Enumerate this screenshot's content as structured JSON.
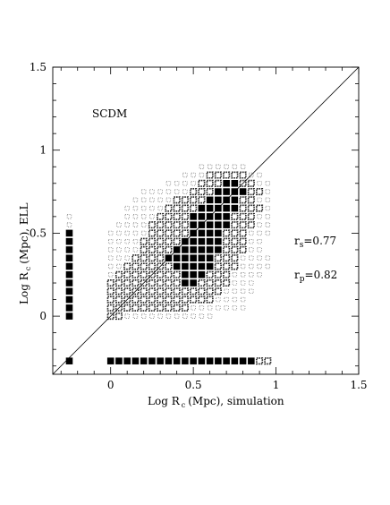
{
  "chart_data": {
    "type": "heatmap",
    "xlabel": "Log R",
    "xlabel_sub": "c",
    "xlabel_rest": "(Mpc), simulation",
    "ylabel": "Log R",
    "ylabel_sub": "c",
    "ylabel_rest": "(Mpc), ELL",
    "xlim": [
      -0.35,
      1.5
    ],
    "ylim": [
      -0.35,
      1.5
    ],
    "xticks": [
      {
        "v": 0,
        "label": "0"
      },
      {
        "v": 0.5,
        "label": "0.5"
      },
      {
        "v": 1,
        "label": "1"
      },
      {
        "v": 1.5,
        "label": "1.5"
      }
    ],
    "yticks": [
      {
        "v": 0,
        "label": "0"
      },
      {
        "v": 0.5,
        "label": "0.5"
      },
      {
        "v": 1,
        "label": "1"
      },
      {
        "v": 1.5,
        "label": "1.5"
      }
    ],
    "diagonal": true,
    "annotations": {
      "model": "SCDM",
      "rs_pre": "r",
      "rs_sub": "s",
      "rs_val": "=0.77",
      "rp_pre": "r",
      "rp_sub": "p",
      "rp_val": "=0.82"
    },
    "cell": 0.05,
    "column_x0": -0.25,
    "row_y0": 0.0,
    "x_start": 0.0,
    "rows": [
      [
        2,
        2,
        1,
        1,
        1,
        1,
        1,
        1,
        1,
        1,
        1,
        1,
        1,
        0,
        0,
        0,
        0,
        0,
        0,
        0
      ],
      [
        2,
        2,
        2,
        2,
        2,
        2,
        2,
        2,
        2,
        2,
        1,
        1,
        1,
        1,
        1,
        1,
        1,
        0,
        0,
        0
      ],
      [
        2,
        2,
        2,
        2,
        2,
        2,
        2,
        2,
        2,
        2,
        2,
        2,
        2,
        1,
        1,
        1,
        1,
        0,
        0,
        0
      ],
      [
        2,
        2,
        2,
        2,
        2,
        2,
        2,
        2,
        2,
        2,
        2,
        2,
        2,
        2,
        1,
        1,
        1,
        1,
        0,
        0
      ],
      [
        2,
        2,
        2,
        2,
        2,
        2,
        2,
        2,
        2,
        3,
        3,
        2,
        2,
        2,
        2,
        1,
        1,
        1,
        0,
        0
      ],
      [
        1,
        2,
        2,
        2,
        2,
        2,
        2,
        2,
        2,
        3,
        3,
        3,
        2,
        2,
        2,
        1,
        1,
        1,
        1,
        0
      ],
      [
        1,
        1,
        2,
        2,
        2,
        2,
        2,
        2,
        3,
        3,
        3,
        3,
        3,
        2,
        2,
        2,
        1,
        1,
        1,
        1
      ],
      [
        1,
        1,
        1,
        2,
        2,
        2,
        2,
        3,
        3,
        3,
        3,
        3,
        3,
        2,
        2,
        2,
        1,
        1,
        1,
        1
      ],
      [
        1,
        1,
        1,
        1,
        2,
        2,
        2,
        2,
        3,
        3,
        3,
        3,
        3,
        3,
        2,
        2,
        2,
        1,
        1,
        0
      ],
      [
        1,
        1,
        1,
        1,
        2,
        2,
        2,
        2,
        2,
        3,
        3,
        3,
        3,
        3,
        2,
        2,
        2,
        1,
        1,
        0
      ],
      [
        1,
        1,
        1,
        1,
        1,
        2,
        2,
        2,
        2,
        2,
        3,
        3,
        3,
        3,
        2,
        2,
        2,
        1,
        1,
        1
      ],
      [
        0,
        1,
        1,
        1,
        1,
        2,
        2,
        2,
        2,
        2,
        3,
        3,
        3,
        3,
        3,
        2,
        2,
        2,
        1,
        1
      ],
      [
        0,
        0,
        1,
        1,
        1,
        1,
        2,
        2,
        2,
        2,
        3,
        3,
        3,
        3,
        3,
        2,
        2,
        2,
        1,
        1
      ],
      [
        0,
        0,
        1,
        1,
        1,
        1,
        1,
        2,
        2,
        2,
        2,
        3,
        3,
        3,
        3,
        3,
        2,
        2,
        2,
        1
      ],
      [
        0,
        0,
        0,
        1,
        1,
        1,
        1,
        1,
        2,
        2,
        2,
        2,
        3,
        3,
        3,
        3,
        2,
        2,
        1,
        1
      ],
      [
        0,
        0,
        0,
        0,
        1,
        1,
        1,
        1,
        1,
        1,
        2,
        2,
        2,
        3,
        3,
        3,
        3,
        2,
        2,
        1
      ],
      [
        0,
        0,
        0,
        0,
        0,
        0,
        0,
        1,
        1,
        1,
        1,
        2,
        2,
        2,
        3,
        3,
        2,
        2,
        1,
        1
      ],
      [
        0,
        0,
        0,
        0,
        0,
        0,
        0,
        0,
        0,
        1,
        1,
        1,
        2,
        2,
        2,
        2,
        2,
        1,
        1,
        0
      ],
      [
        0,
        0,
        0,
        0,
        0,
        0,
        0,
        0,
        0,
        0,
        0,
        1,
        1,
        1,
        1,
        1,
        1,
        0,
        0,
        0
      ]
    ],
    "left_column_count": 13,
    "left_column_open": [
      11,
      12
    ],
    "bottom_row_x": [
      -0.25,
      0.0,
      0.05,
      0.1,
      0.15,
      0.2,
      0.25,
      0.3,
      0.35,
      0.4,
      0.45,
      0.5,
      0.55,
      0.6,
      0.65,
      0.7,
      0.75,
      0.8,
      0.85,
      0.9,
      0.95
    ],
    "bottom_row_y": -0.27
  }
}
